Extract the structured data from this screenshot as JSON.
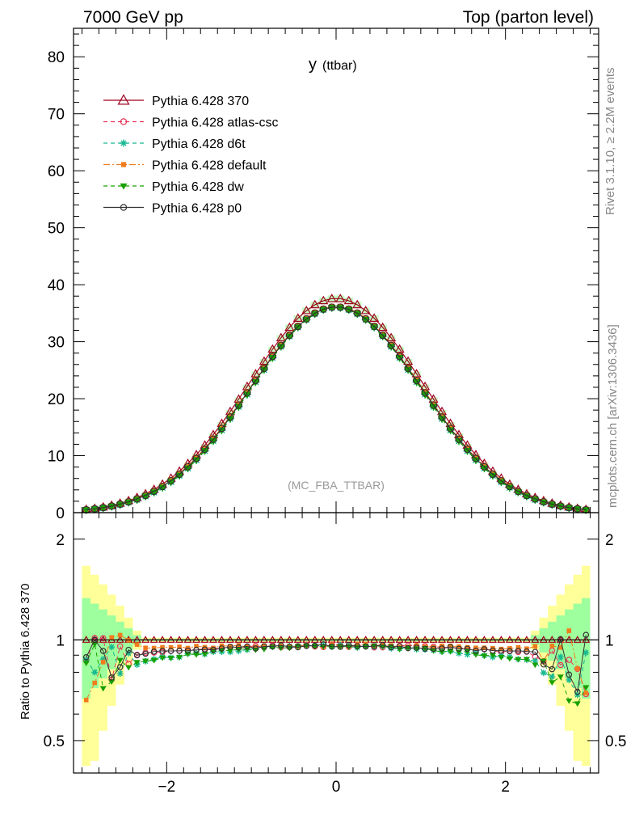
{
  "header": {
    "left": "7000 GeV pp",
    "right": "Top (parton level)"
  },
  "side": {
    "rivet": "Rivet 3.1.10, ≥ 2.2M events",
    "mcplots": "mcplots.cern.ch [arXiv:1306.3436]"
  },
  "chart_data": {
    "type": "line",
    "title_main": "y",
    "title_sub": "(ttbar)",
    "watermark": "(MC_FBA_TTBAR)",
    "ratio_ylabel": "Ratio to Pythia 6.428 370",
    "xlim": [
      -3.1,
      3.1
    ],
    "ylim": [
      0,
      85
    ],
    "ratio_ylim": [
      0.4,
      2.4
    ],
    "x_ticks": [
      "−2",
      "0",
      "2"
    ],
    "y_ticks": [
      "0",
      "10",
      "20",
      "30",
      "40",
      "50",
      "60",
      "70",
      "80"
    ],
    "ratio_ticks": [
      "0.5",
      "1",
      "2"
    ],
    "legend_placement": "top-left",
    "series": [
      {
        "name": "Pythia 6.428 370",
        "color": "#a0001c",
        "marker": "triangle-open",
        "peak": 37.6,
        "width": 1.02
      },
      {
        "name": "Pythia 6.428 atlas-csc",
        "color": "#e8365a",
        "marker": "circle-open",
        "peak": 36.1,
        "width": 1.01
      },
      {
        "name": "Pythia 6.428 d6t",
        "color": "#17b890",
        "marker": "star",
        "peak": 36.0,
        "width": 1.0
      },
      {
        "name": "Pythia 6.428 default",
        "color": "#f07c1e",
        "marker": "square",
        "peak": 36.2,
        "width": 1.015
      },
      {
        "name": "Pythia 6.428 dw",
        "color": "#17a000",
        "marker": "triangle-down",
        "peak": 36.0,
        "width": 1.0
      },
      {
        "name": "Pythia 6.428 p0",
        "color": "#333333",
        "marker": "circle-open",
        "peak": 36.1,
        "width": 1.01
      }
    ]
  }
}
